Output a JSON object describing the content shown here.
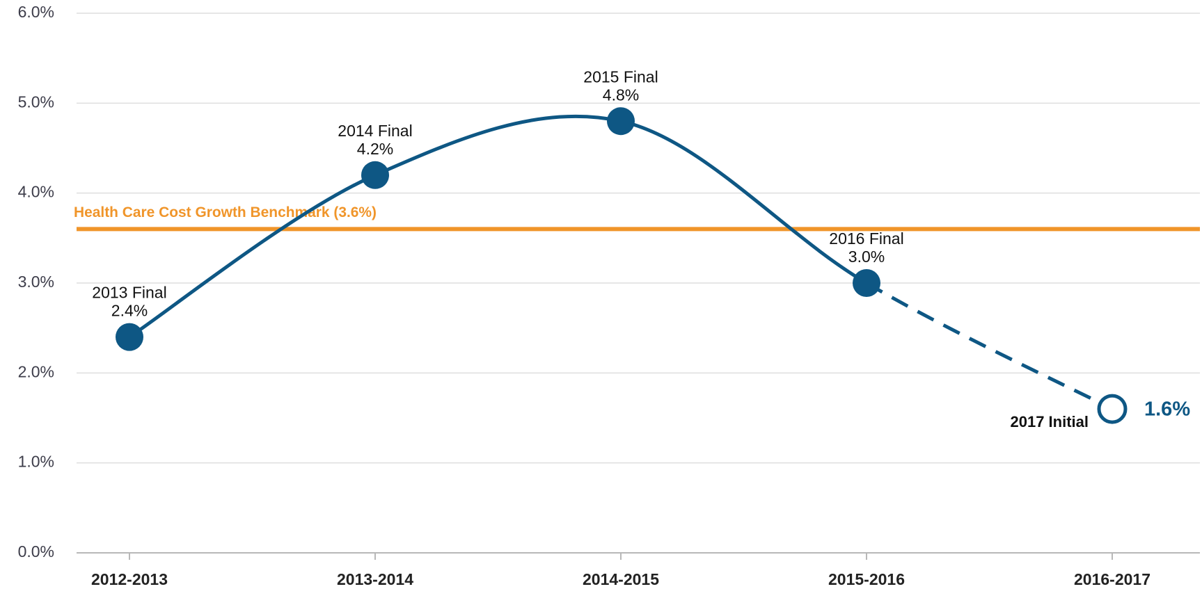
{
  "chart_data": {
    "type": "line",
    "categories": [
      "2012-2013",
      "2013-2014",
      "2014-2015",
      "2015-2016",
      "2016-2017"
    ],
    "series": [
      {
        "color": "#0e5784",
        "values": [
          2.4,
          4.2,
          4.8,
          3.0,
          1.6
        ],
        "value_labels": [
          "2.4%",
          "4.2%",
          "4.8%",
          "3.0%",
          "1.6%"
        ]
      }
    ],
    "point_labels": [
      "2013 Final",
      "2014 Final",
      "2015 Final",
      "2016 Final",
      "2017 Initial"
    ],
    "hollow_points": [
      4
    ],
    "ylim": [
      0,
      6
    ],
    "yticks": [
      {
        "value": 0,
        "label": "0.0%"
      },
      {
        "value": 1,
        "label": "1.0%"
      },
      {
        "value": 2,
        "label": "2.0%"
      },
      {
        "value": 3,
        "label": "3.0%"
      },
      {
        "value": 4,
        "label": "4.0%"
      },
      {
        "value": 5,
        "label": "5.0%"
      },
      {
        "value": 6,
        "label": "6.0%"
      }
    ],
    "grid": true,
    "benchmark": {
      "value": 3.6,
      "label": "Health Care Cost Growth Benchmark (3.6%)",
      "color": "#f0952a"
    }
  }
}
